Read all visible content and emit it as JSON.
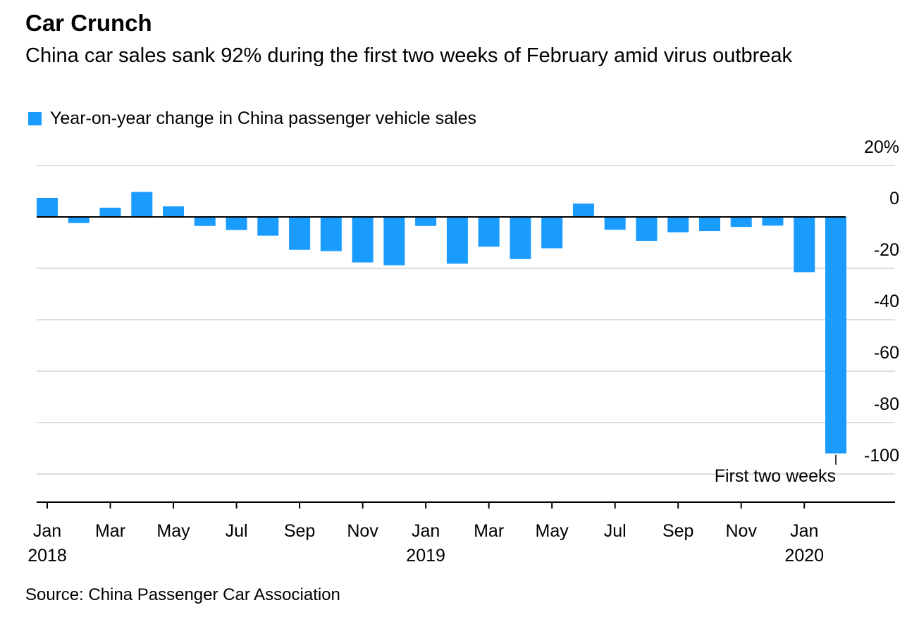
{
  "title": "Car Crunch",
  "subtitle": "China car sales sank 92% during the first two weeks of February amid virus outbreak",
  "source": "Source: China Passenger Car Association",
  "colors": {
    "bar": "#1a9cff",
    "grid": "#dddddd",
    "axis": "#000000"
  },
  "chart_data": {
    "type": "bar",
    "legend": "Year-on-year change in China passenger vehicle sales",
    "legend_placement": "top-left",
    "categories": [
      "Jan 2018",
      "Feb 2018",
      "Mar 2018",
      "Apr 2018",
      "May 2018",
      "Jun 2018",
      "Jul 2018",
      "Aug 2018",
      "Sep 2018",
      "Oct 2018",
      "Nov 2018",
      "Dec 2018",
      "Jan 2019",
      "Feb 2019",
      "Mar 2019",
      "Apr 2019",
      "May 2019",
      "Jun 2019",
      "Jul 2019",
      "Aug 2019",
      "Sep 2019",
      "Oct 2019",
      "Nov 2019",
      "Dec 2019",
      "Jan 2020",
      "Feb 2020"
    ],
    "values": [
      7.4,
      -2.4,
      3.6,
      9.7,
      4.1,
      -3.5,
      -5.1,
      -7.3,
      -12.8,
      -13.3,
      -17.7,
      -18.8,
      -3.5,
      -18.2,
      -11.6,
      -16.4,
      -12.2,
      5.2,
      -5.0,
      -9.3,
      -6.0,
      -5.5,
      -3.9,
      -3.4,
      -21.5,
      -92.0
    ],
    "ylim": [
      -110,
      20
    ],
    "yticks": [
      20,
      0,
      -20,
      -40,
      -60,
      -80,
      -100
    ],
    "ytick_labels": [
      "20%",
      "0",
      "-20",
      "-40",
      "-60",
      "-80",
      "-100"
    ],
    "xtick_labels": [
      {
        "month": "Jan",
        "year": "2018"
      },
      {
        "month": "Mar",
        "year": ""
      },
      {
        "month": "May",
        "year": ""
      },
      {
        "month": "Jul",
        "year": ""
      },
      {
        "month": "Sep",
        "year": ""
      },
      {
        "month": "Nov",
        "year": ""
      },
      {
        "month": "Jan",
        "year": "2019"
      },
      {
        "month": "Mar",
        "year": ""
      },
      {
        "month": "May",
        "year": ""
      },
      {
        "month": "Jul",
        "year": ""
      },
      {
        "month": "Sep",
        "year": ""
      },
      {
        "month": "Nov",
        "year": ""
      },
      {
        "month": "Jan",
        "year": "2020"
      }
    ],
    "annotation": {
      "text": "First two weeks",
      "category": "Feb 2020"
    },
    "grid": true
  }
}
